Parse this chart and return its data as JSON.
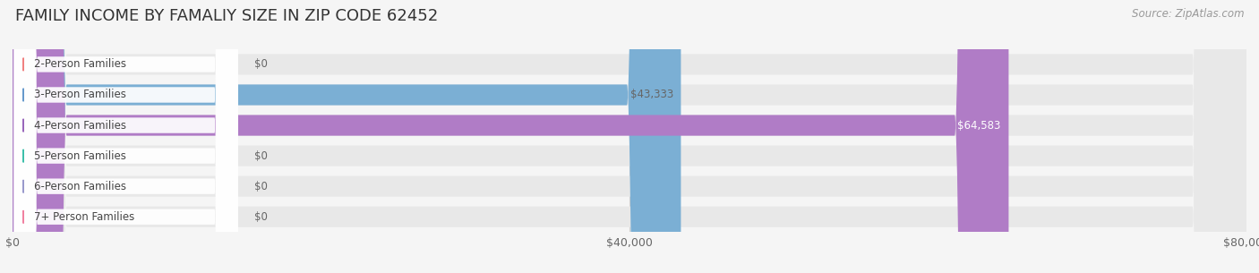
{
  "title": "FAMILY INCOME BY FAMALIY SIZE IN ZIP CODE 62452",
  "source": "Source: ZipAtlas.com",
  "categories": [
    "2-Person Families",
    "3-Person Families",
    "4-Person Families",
    "5-Person Families",
    "6-Person Families",
    "7+ Person Families"
  ],
  "values": [
    0,
    43333,
    64583,
    0,
    0,
    0
  ],
  "bar_colors": [
    "#f0a0a0",
    "#7bafd4",
    "#b07cc6",
    "#5abfb0",
    "#a9a9d4",
    "#f4a0b5"
  ],
  "icon_colors": [
    "#f08080",
    "#6699cc",
    "#9966bb",
    "#3dbfaa",
    "#9999cc",
    "#f080a0"
  ],
  "value_label_colors": [
    "#666666",
    "#666666",
    "#ffffff",
    "#666666",
    "#666666",
    "#666666"
  ],
  "xlim": [
    0,
    80000
  ],
  "xticks": [
    0,
    40000,
    80000
  ],
  "xtick_labels": [
    "$0",
    "$40,000",
    "$80,000"
  ],
  "value_labels": [
    "$0",
    "$43,333",
    "$64,583",
    "$0",
    "$0",
    "$0"
  ],
  "background_color": "#f5f5f5",
  "bar_bg_color": "#e8e8e8",
  "title_fontsize": 13,
  "tick_fontsize": 9,
  "cat_fontsize": 8.5,
  "value_fontsize": 8.5,
  "source_fontsize": 8.5
}
